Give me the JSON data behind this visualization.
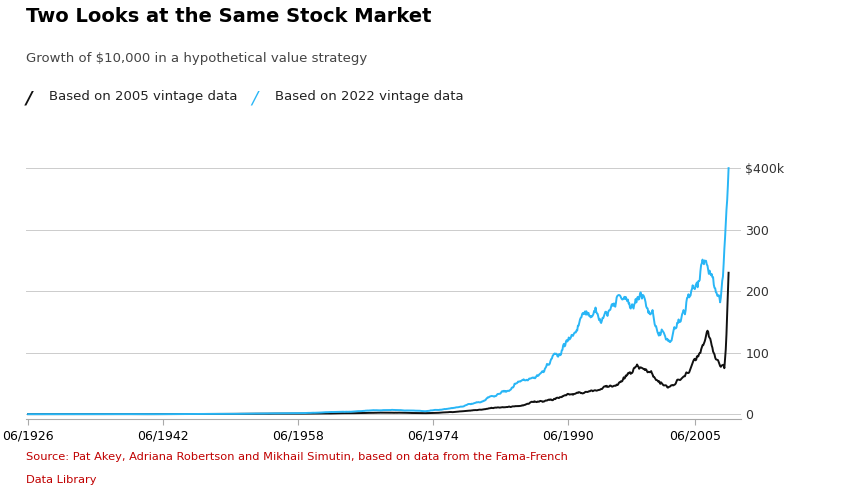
{
  "title": "Two Looks at the Same Stock Market",
  "subtitle": "Growth of $10,000 in a hypothetical value strategy",
  "legend_2005": "Based on 2005 vintage data",
  "legend_2022": "Based on 2022 vintage data",
  "color_2005": "#111111",
  "color_2022": "#29B6F6",
  "yticks": [
    0,
    100,
    200,
    300,
    400
  ],
  "ytick_labels": [
    "0",
    "100",
    "200",
    "300",
    "$400k"
  ],
  "xtick_positions": [
    1926.5,
    1942.5,
    1958.5,
    1974.5,
    1990.5,
    2005.5
  ],
  "xtick_labels": [
    "06/1926",
    "06/1942",
    "06/1958",
    "06/1974",
    "06/1990",
    "06/2005"
  ],
  "source_line1": "Source: Pat Akey, Adriana Robertson and Mikhail Simutin, based on data from the Fama-French",
  "source_line2": "Data Library",
  "source_color": "#C00000",
  "background_color": "#FFFFFF",
  "grid_color": "#CCCCCC",
  "line_width": 1.4
}
